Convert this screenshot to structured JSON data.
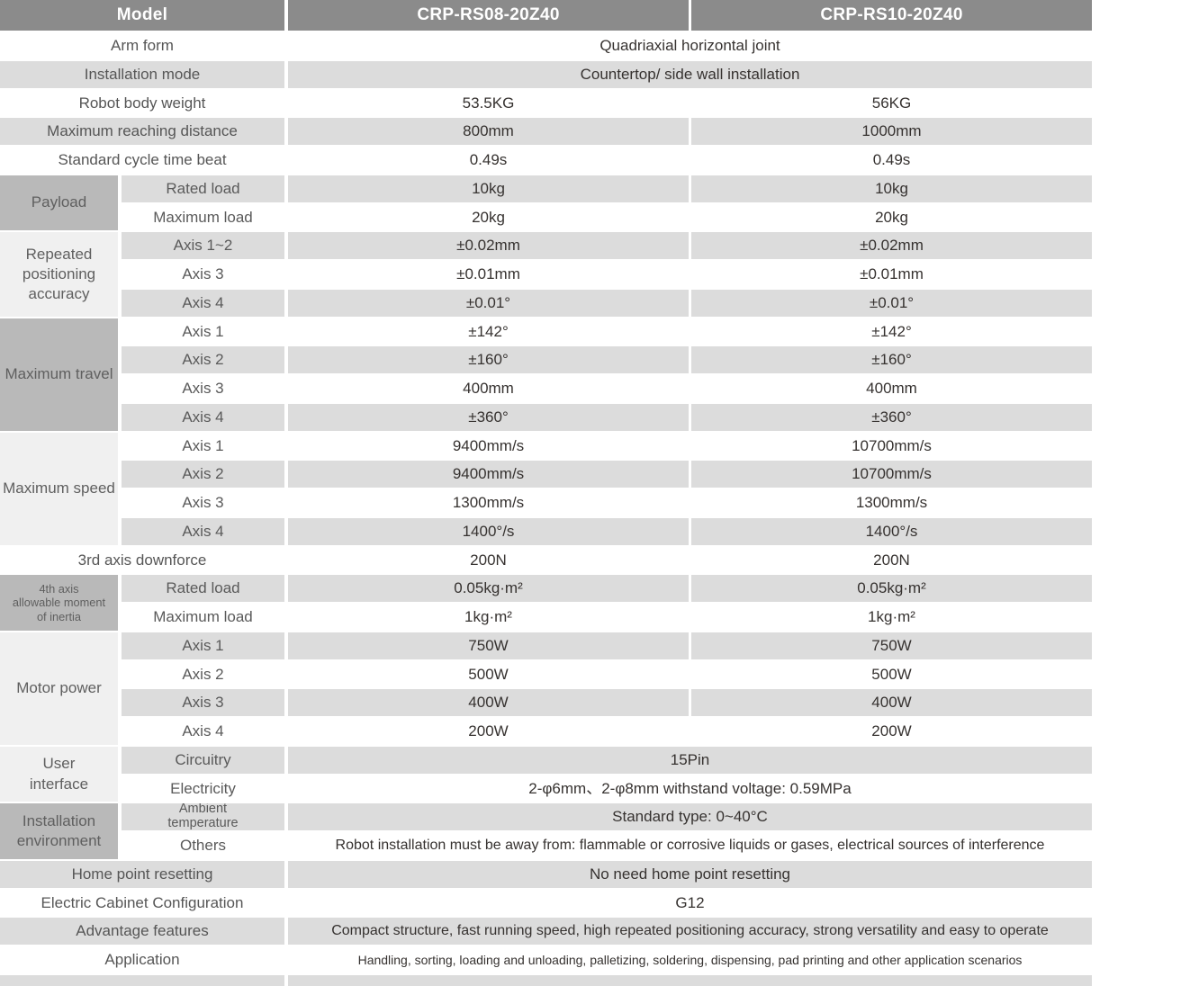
{
  "colors": {
    "header_bg": "#8b8b8b",
    "stripe": "#dcdcdc",
    "group_dark": "#b9b9b9",
    "group_light": "#f0f0f0",
    "white_row": "#ffffff"
  },
  "table": {
    "header": [
      "Model",
      "CRP-RS08-20Z40",
      "CRP-RS10-20Z40"
    ],
    "rows": [
      {
        "shade": "w",
        "cells": [
          {
            "slot": "label",
            "text": "Arm form"
          },
          {
            "slot": "vspan",
            "text": "Quadriaxial horizontal joint"
          }
        ]
      },
      {
        "shade": "g",
        "cells": [
          {
            "slot": "label",
            "text": "Installation mode"
          },
          {
            "slot": "vspan",
            "text": "Countertop/ side wall installation"
          }
        ]
      },
      {
        "shade": "w",
        "cells": [
          {
            "slot": "label",
            "text": "Robot body weight"
          },
          {
            "slot": "v1",
            "text": "53.5KG"
          },
          {
            "slot": "v2",
            "text": "56KG"
          }
        ]
      },
      {
        "shade": "g",
        "cells": [
          {
            "slot": "label",
            "text": "Maximum reaching distance"
          },
          {
            "slot": "v1",
            "text": "800mm"
          },
          {
            "slot": "v2",
            "text": "1000mm"
          }
        ]
      },
      {
        "shade": "w",
        "cells": [
          {
            "slot": "label",
            "text": "Standard cycle time beat"
          },
          {
            "slot": "v1",
            "text": "0.49s"
          },
          {
            "slot": "v2",
            "text": "0.49s"
          }
        ]
      },
      {
        "shade": "g",
        "cells": [
          {
            "slot": "group",
            "tone": "dark",
            "rowspan": 2,
            "text": "Payload"
          },
          {
            "slot": "sub",
            "text": "Rated load"
          },
          {
            "slot": "v1",
            "text": "10kg"
          },
          {
            "slot": "v2",
            "text": "10kg"
          }
        ]
      },
      {
        "shade": "w",
        "cells": [
          {
            "slot": "sub",
            "text": "Maximum load"
          },
          {
            "slot": "v1",
            "text": "20kg"
          },
          {
            "slot": "v2",
            "text": "20kg"
          }
        ]
      },
      {
        "shade": "g",
        "cells": [
          {
            "slot": "group",
            "tone": "light",
            "rowspan": 3,
            "text": "Repeated\npositioning\naccuracy"
          },
          {
            "slot": "sub",
            "text": "Axis 1~2"
          },
          {
            "slot": "v1",
            "text": "±0.02mm"
          },
          {
            "slot": "v2",
            "text": "±0.02mm"
          }
        ]
      },
      {
        "shade": "w",
        "cells": [
          {
            "slot": "sub",
            "text": "Axis 3"
          },
          {
            "slot": "v1",
            "text": "±0.01mm"
          },
          {
            "slot": "v2",
            "text": "±0.01mm"
          }
        ]
      },
      {
        "shade": "g",
        "cells": [
          {
            "slot": "sub",
            "text": "Axis 4"
          },
          {
            "slot": "v1",
            "text": "±0.01°"
          },
          {
            "slot": "v2",
            "text": "±0.01°"
          }
        ]
      },
      {
        "shade": "w",
        "cells": [
          {
            "slot": "group",
            "tone": "dark",
            "rowspan": 4,
            "text": "Maximum travel"
          },
          {
            "slot": "sub",
            "text": "Axis 1"
          },
          {
            "slot": "v1",
            "text": "±142°"
          },
          {
            "slot": "v2",
            "text": "±142°"
          }
        ]
      },
      {
        "shade": "g",
        "cells": [
          {
            "slot": "sub",
            "text": "Axis 2"
          },
          {
            "slot": "v1",
            "text": "±160°"
          },
          {
            "slot": "v2",
            "text": "±160°"
          }
        ]
      },
      {
        "shade": "w",
        "cells": [
          {
            "slot": "sub",
            "text": "Axis 3"
          },
          {
            "slot": "v1",
            "text": "400mm"
          },
          {
            "slot": "v2",
            "text": "400mm"
          }
        ]
      },
      {
        "shade": "g",
        "cells": [
          {
            "slot": "sub",
            "text": "Axis 4"
          },
          {
            "slot": "v1",
            "text": "±360°"
          },
          {
            "slot": "v2",
            "text": "±360°"
          }
        ]
      },
      {
        "shade": "w",
        "cells": [
          {
            "slot": "group",
            "tone": "light",
            "rowspan": 4,
            "text": "Maximum speed"
          },
          {
            "slot": "sub",
            "text": "Axis 1"
          },
          {
            "slot": "v1",
            "text": "9400mm/s"
          },
          {
            "slot": "v2",
            "text": "10700mm/s"
          }
        ]
      },
      {
        "shade": "g",
        "cells": [
          {
            "slot": "sub",
            "text": "Axis 2"
          },
          {
            "slot": "v1",
            "text": "9400mm/s"
          },
          {
            "slot": "v2",
            "text": "10700mm/s"
          }
        ]
      },
      {
        "shade": "w",
        "cells": [
          {
            "slot": "sub",
            "text": "Axis 3"
          },
          {
            "slot": "v1",
            "text": "1300mm/s"
          },
          {
            "slot": "v2",
            "text": "1300mm/s"
          }
        ]
      },
      {
        "shade": "g",
        "cells": [
          {
            "slot": "sub",
            "text": "Axis 4"
          },
          {
            "slot": "v1",
            "text": "1400°/s"
          },
          {
            "slot": "v2",
            "text": "1400°/s"
          }
        ]
      },
      {
        "shade": "w",
        "cells": [
          {
            "slot": "label",
            "text": "3rd axis downforce"
          },
          {
            "slot": "v1",
            "text": "200N"
          },
          {
            "slot": "v2",
            "text": "200N"
          }
        ]
      },
      {
        "shade": "g",
        "cells": [
          {
            "slot": "group",
            "tone": "dark",
            "rowspan": 2,
            "cls": "fs13",
            "text": "4th axis\nallowable moment\nof inertia"
          },
          {
            "slot": "sub",
            "text": "Rated load"
          },
          {
            "slot": "v1",
            "text": "0.05kg·m²"
          },
          {
            "slot": "v2",
            "text": "0.05kg·m²"
          }
        ]
      },
      {
        "shade": "w",
        "cells": [
          {
            "slot": "sub",
            "text": "Maximum load"
          },
          {
            "slot": "v1",
            "text": "1kg·m²"
          },
          {
            "slot": "v2",
            "text": "1kg·m²"
          }
        ]
      },
      {
        "shade": "g",
        "cells": [
          {
            "slot": "group",
            "tone": "light",
            "rowspan": 4,
            "text": "Motor power"
          },
          {
            "slot": "sub",
            "text": "Axis 1"
          },
          {
            "slot": "v1",
            "text": "750W"
          },
          {
            "slot": "v2",
            "text": "750W"
          }
        ]
      },
      {
        "shade": "w",
        "cells": [
          {
            "slot": "sub",
            "text": "Axis 2"
          },
          {
            "slot": "v1",
            "text": "500W"
          },
          {
            "slot": "v2",
            "text": "500W"
          }
        ]
      },
      {
        "shade": "g",
        "cells": [
          {
            "slot": "sub",
            "text": "Axis 3"
          },
          {
            "slot": "v1",
            "text": "400W"
          },
          {
            "slot": "v2",
            "text": "400W"
          }
        ]
      },
      {
        "shade": "w",
        "cells": [
          {
            "slot": "sub",
            "text": "Axis 4"
          },
          {
            "slot": "v1",
            "text": "200W"
          },
          {
            "slot": "v2",
            "text": "200W"
          }
        ]
      },
      {
        "shade": "g",
        "cells": [
          {
            "slot": "group",
            "tone": "light",
            "rowspan": 2,
            "text": "User\ninterface"
          },
          {
            "slot": "sub",
            "text": "Circuitry"
          },
          {
            "slot": "vspan",
            "text": "15Pin"
          }
        ]
      },
      {
        "shade": "w",
        "cells": [
          {
            "slot": "sub",
            "text": "Electricity"
          },
          {
            "slot": "vspan",
            "text": "2-φ6mm、2-φ8mm withstand voltage: 0.59MPa"
          }
        ]
      },
      {
        "shade": "g",
        "cells": [
          {
            "slot": "group",
            "tone": "dark",
            "rowspan": 2,
            "text": "Installation\nenvironment"
          },
          {
            "slot": "sub",
            "cls": "fs14h",
            "text": "Ambient\ntemperature"
          },
          {
            "slot": "vspan",
            "text": "Standard type: 0~40°C"
          }
        ]
      },
      {
        "shade": "w",
        "cells": [
          {
            "slot": "sub",
            "text": "Others"
          },
          {
            "slot": "vspan",
            "cls": "fs16",
            "text": "Robot installation must be away from: flammable or corrosive liquids or gases, electrical sources of interference"
          }
        ]
      },
      {
        "shade": "g",
        "cells": [
          {
            "slot": "label",
            "text": "Home point resetting"
          },
          {
            "slot": "vspan",
            "text": "No need home point resetting"
          }
        ]
      },
      {
        "shade": "w",
        "cells": [
          {
            "slot": "label",
            "text": "Electric Cabinet Configuration"
          },
          {
            "slot": "vspan",
            "text": "G12"
          }
        ]
      },
      {
        "shade": "g",
        "cells": [
          {
            "slot": "label",
            "text": "Advantage features"
          },
          {
            "slot": "vspan",
            "cls": "fs16",
            "text": "Compact structure, fast running speed, high repeated positioning accuracy, strong versatility and easy to operate"
          }
        ]
      },
      {
        "shade": "w",
        "cells": [
          {
            "slot": "label",
            "text": "Application"
          },
          {
            "slot": "vspan",
            "cls": "fs14",
            "text": "Handling, sorting, loading and unloading, palletizing, soldering, dispensing, pad printing and other application scenarios"
          }
        ]
      },
      {
        "shade": "g",
        "partial": true,
        "cells": [
          {
            "slot": "label",
            "text": ""
          },
          {
            "slot": "vspan",
            "text": ""
          }
        ]
      }
    ]
  }
}
